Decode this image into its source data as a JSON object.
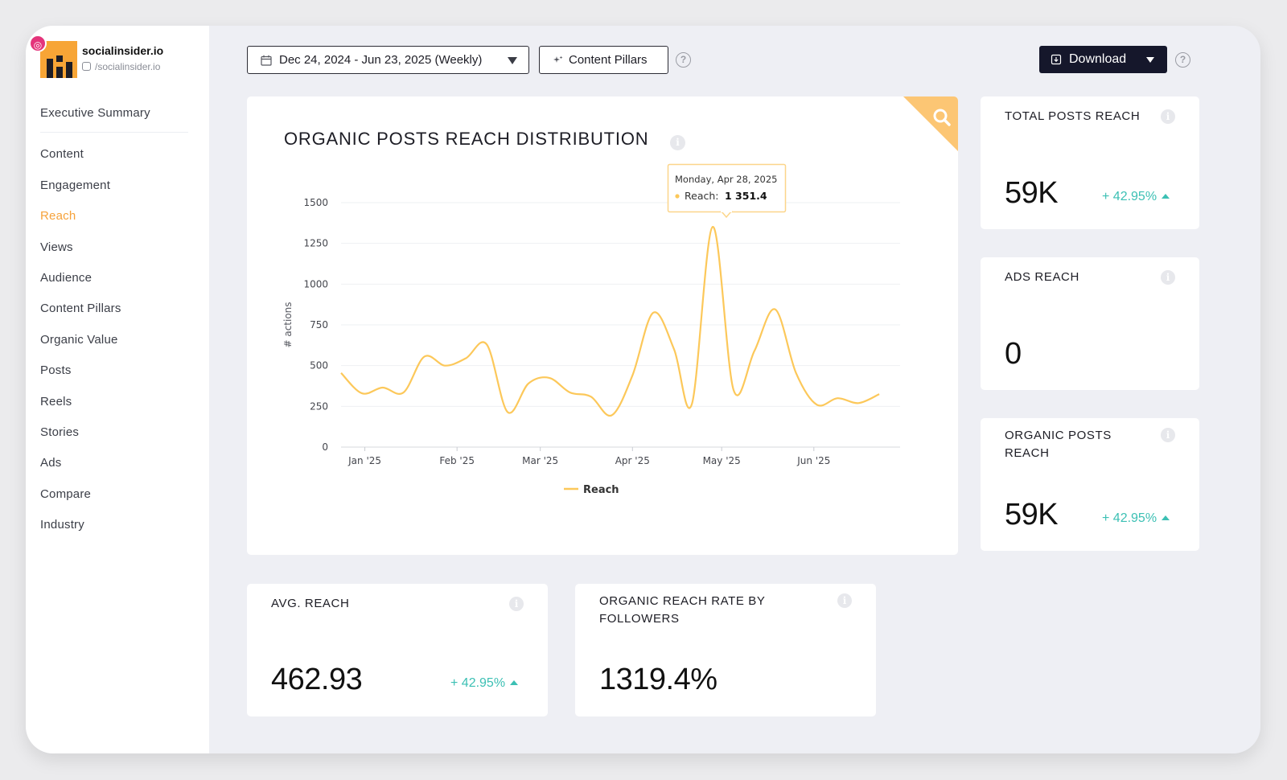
{
  "profile": {
    "name": "socialinsider.io",
    "handle": "/socialinsider.io"
  },
  "nav": {
    "items": [
      {
        "label": "Executive Summary",
        "active": false
      },
      {
        "label": "Content",
        "active": false
      },
      {
        "label": "Engagement",
        "active": false
      },
      {
        "label": "Reach",
        "active": true
      },
      {
        "label": "Views",
        "active": false
      },
      {
        "label": "Audience",
        "active": false
      },
      {
        "label": "Content Pillars",
        "active": false
      },
      {
        "label": "Organic Value",
        "active": false
      },
      {
        "label": "Posts",
        "active": false
      },
      {
        "label": "Reels",
        "active": false
      },
      {
        "label": "Stories",
        "active": false
      },
      {
        "label": "Ads",
        "active": false
      },
      {
        "label": "Compare",
        "active": false
      },
      {
        "label": "Industry",
        "active": false
      }
    ]
  },
  "toolbar": {
    "date_range": "Dec 24, 2024 - Jun 23, 2025 (Weekly)",
    "content_pillars": "Content Pillars",
    "download": "Download",
    "help_glyph": "?"
  },
  "colors": {
    "accent": "#f6a23a",
    "line": "#fcc85a",
    "positive": "#3cc0b4",
    "dark": "#15172b"
  },
  "chart_data": {
    "type": "line",
    "title": "ORGANIC POSTS REACH DISTRIBUTION",
    "ylabel": "# actions",
    "ylim": [
      0,
      1500
    ],
    "yticks": [
      0,
      250,
      500,
      750,
      1000,
      1250,
      1500
    ],
    "xticks": [
      {
        "label": "Jan '25",
        "date": "2025-01-01"
      },
      {
        "label": "Feb '25",
        "date": "2025-02-01"
      },
      {
        "label": "Mar '25",
        "date": "2025-03-01"
      },
      {
        "label": "Apr '25",
        "date": "2025-04-01"
      },
      {
        "label": "May '25",
        "date": "2025-05-01"
      },
      {
        "label": "Jun '25",
        "date": "2025-06-01"
      }
    ],
    "xrange": [
      "2024-12-24",
      "2025-06-30"
    ],
    "grid": true,
    "legend": "bottom-center",
    "series": [
      {
        "name": "Reach",
        "points": [
          {
            "x": "2024-12-24",
            "y": 455
          },
          {
            "x": "2024-12-31",
            "y": 330
          },
          {
            "x": "2025-01-07",
            "y": 365
          },
          {
            "x": "2025-01-14",
            "y": 335
          },
          {
            "x": "2025-01-21",
            "y": 555
          },
          {
            "x": "2025-01-28",
            "y": 500
          },
          {
            "x": "2025-02-04",
            "y": 545
          },
          {
            "x": "2025-02-11",
            "y": 630
          },
          {
            "x": "2025-02-18",
            "y": 215
          },
          {
            "x": "2025-02-25",
            "y": 390
          },
          {
            "x": "2025-03-04",
            "y": 425
          },
          {
            "x": "2025-03-11",
            "y": 335
          },
          {
            "x": "2025-03-18",
            "y": 310
          },
          {
            "x": "2025-03-25",
            "y": 195
          },
          {
            "x": "2025-04-01",
            "y": 440
          },
          {
            "x": "2025-04-08",
            "y": 825
          },
          {
            "x": "2025-04-15",
            "y": 600
          },
          {
            "x": "2025-04-21",
            "y": 265
          },
          {
            "x": "2025-04-28",
            "y": 1351.4
          },
          {
            "x": "2025-05-05",
            "y": 350
          },
          {
            "x": "2025-05-12",
            "y": 590
          },
          {
            "x": "2025-05-19",
            "y": 845
          },
          {
            "x": "2025-05-26",
            "y": 455
          },
          {
            "x": "2025-06-02",
            "y": 260
          },
          {
            "x": "2025-06-09",
            "y": 300
          },
          {
            "x": "2025-06-16",
            "y": 270
          },
          {
            "x": "2025-06-23",
            "y": 325
          }
        ]
      }
    ],
    "tooltip": {
      "date": "Monday, Apr 28, 2025",
      "label": "Reach:",
      "value": "1 351.4"
    }
  },
  "cards": {
    "total_posts_reach": {
      "title": "TOTAL POSTS REACH",
      "value": "59K",
      "change": "+ 42.95%"
    },
    "ads_reach": {
      "title": "ADS REACH",
      "value": "0"
    },
    "organic_posts_reach": {
      "title_line1": "ORGANIC POSTS",
      "title_line2": "REACH",
      "value": "59K",
      "change": "+ 42.95%"
    },
    "avg_reach": {
      "title": "AVG. REACH",
      "value": "462.93",
      "change": "+ 42.95%"
    },
    "organic_reach_rate": {
      "title_line1": "ORGANIC REACH RATE BY",
      "title_line2": "FOLLOWERS",
      "value": "1319.4%"
    }
  }
}
